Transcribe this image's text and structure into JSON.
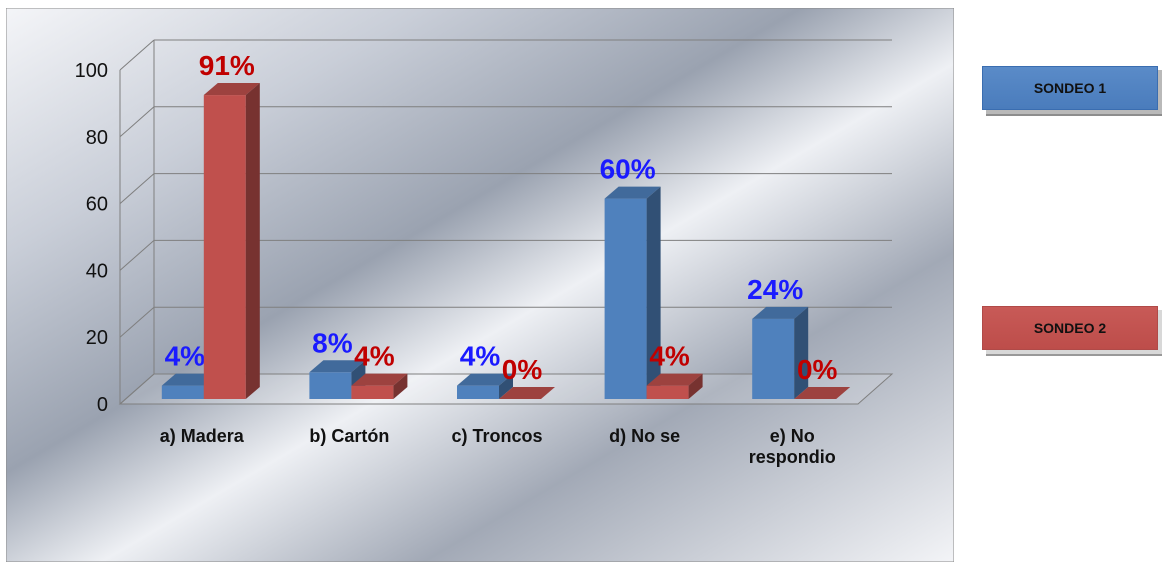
{
  "chart_data": {
    "type": "bar",
    "categories": [
      "a) Madera",
      "b) Cartón",
      "c) Troncos",
      "d) No se",
      "e) No respondio"
    ],
    "category_lines": [
      [
        "a) Madera"
      ],
      [
        "b) Cartón"
      ],
      [
        "c) Troncos"
      ],
      [
        "d) No se"
      ],
      [
        "e) No",
        "respondio"
      ]
    ],
    "series": [
      {
        "name": "SONDEO  1",
        "values": [
          4,
          8,
          4,
          60,
          24
        ],
        "labels": [
          "4%",
          "8%",
          "4%",
          "60%",
          "24%"
        ],
        "color": "#4f81bd",
        "label_color": "#1a1aff"
      },
      {
        "name": "SONDEO 2",
        "values": [
          91,
          4,
          0,
          4,
          0
        ],
        "labels": [
          "91%",
          "4%",
          "0%",
          "4%",
          "0%"
        ],
        "color": "#c0504d",
        "label_color": "#c00000"
      }
    ],
    "y_ticks": [
      "0",
      "20",
      "40",
      "60",
      "80",
      "100"
    ],
    "ylim": [
      0,
      100
    ],
    "grid": true,
    "legend_position": "right",
    "three_d": true
  }
}
